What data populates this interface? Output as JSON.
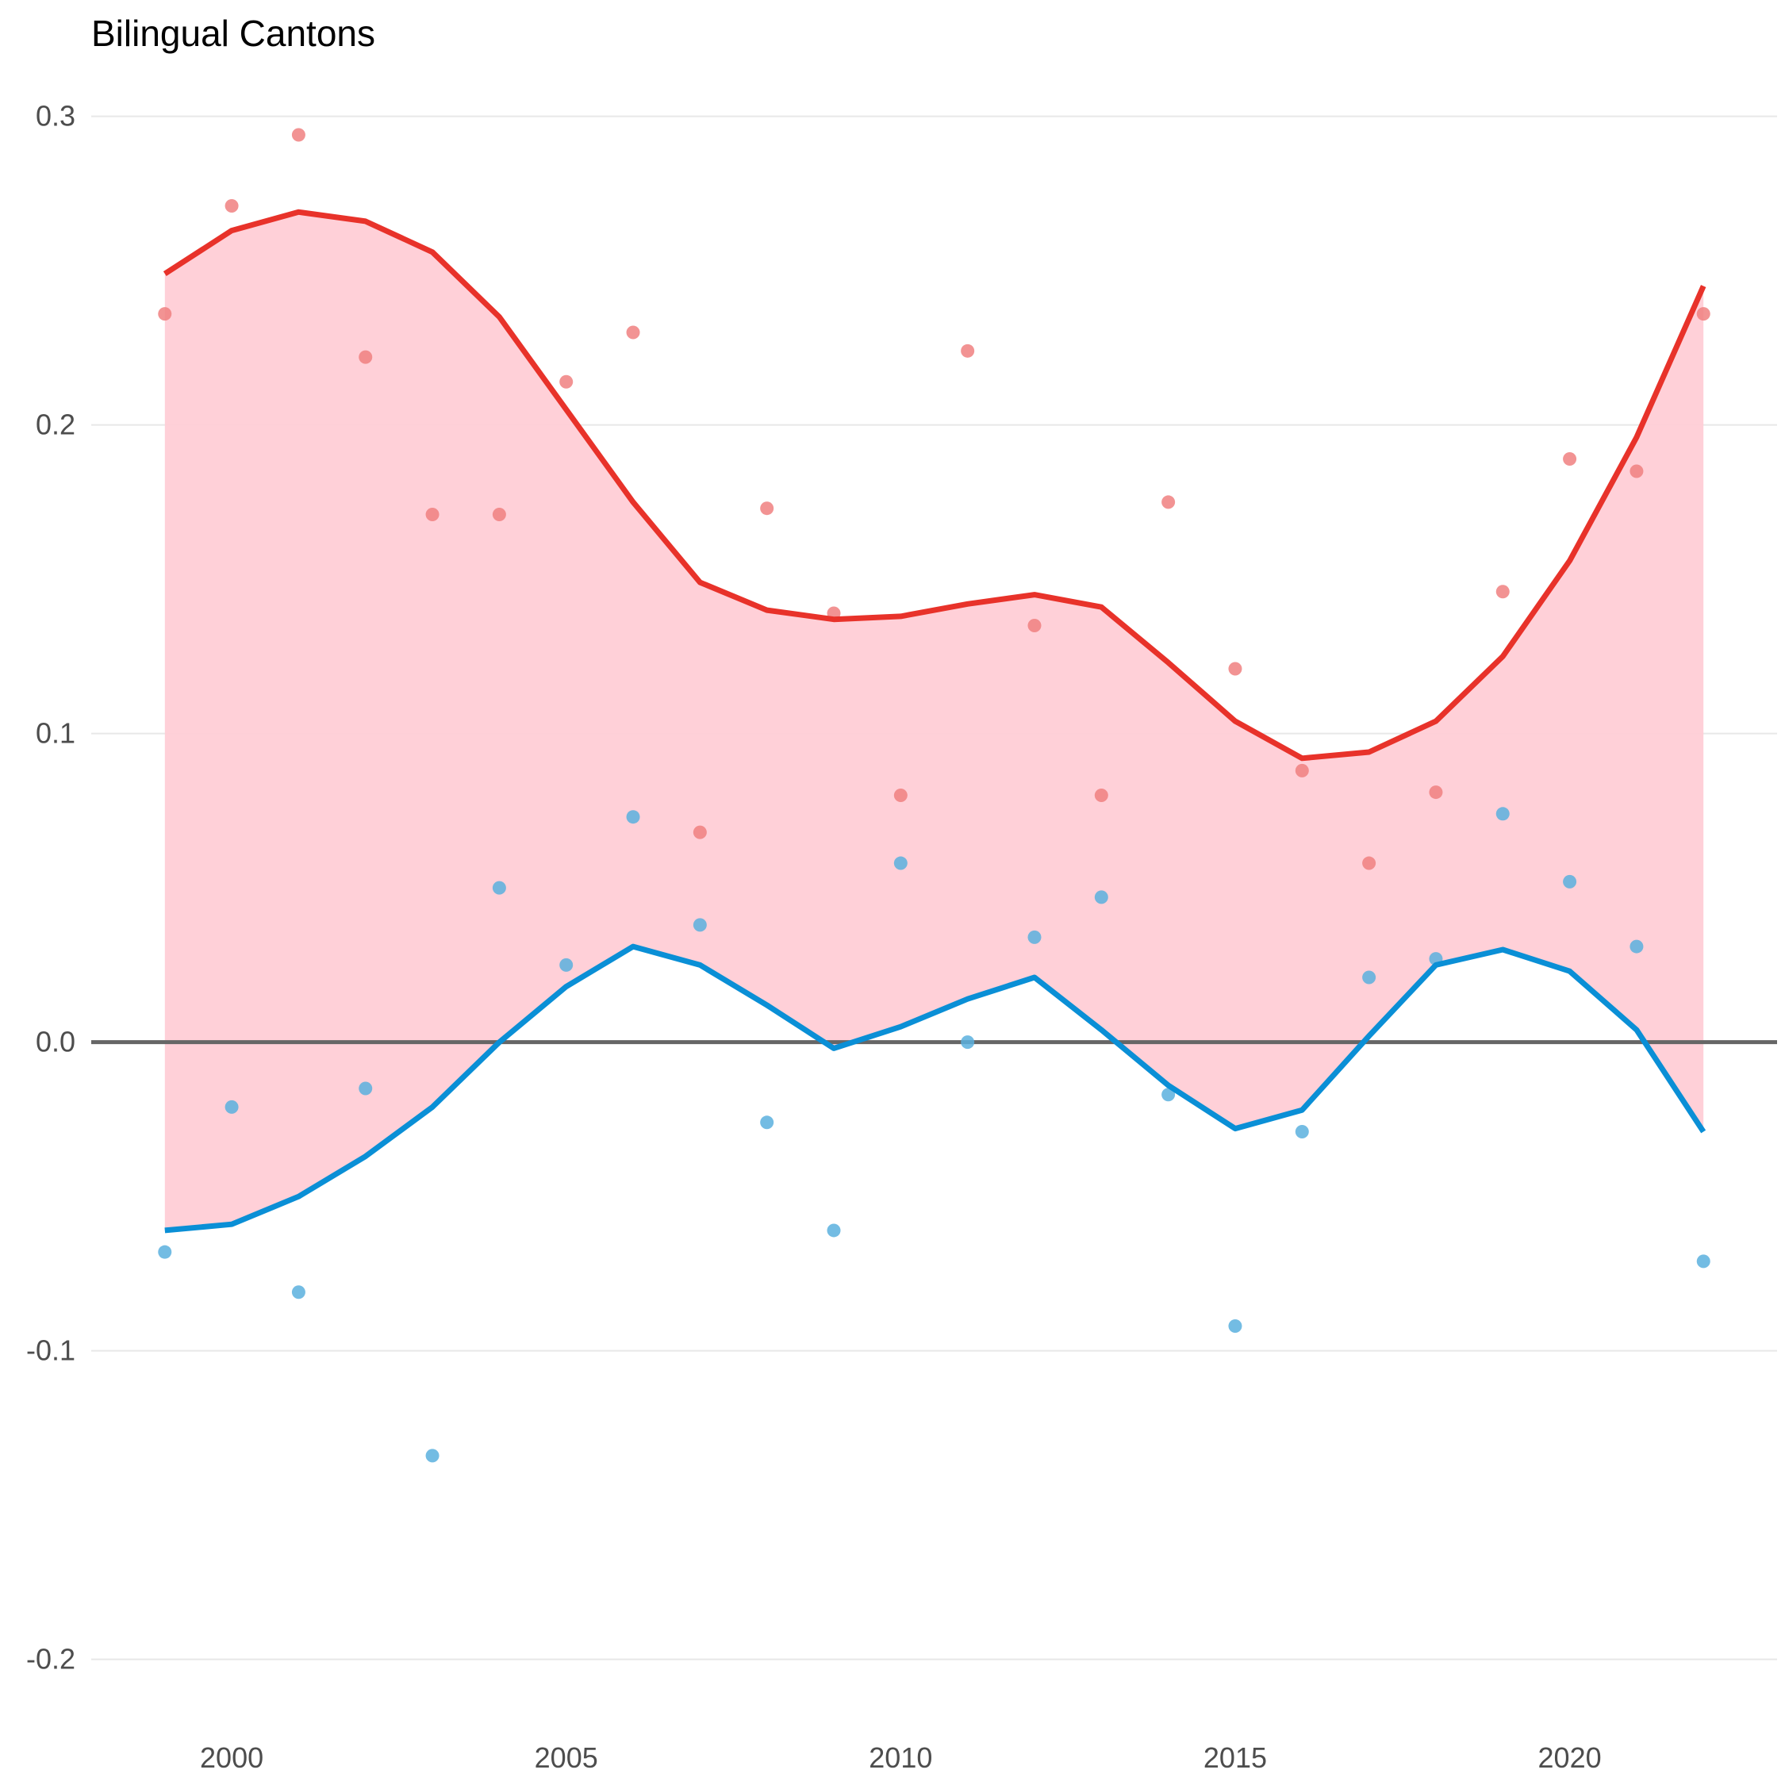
{
  "chart_data": {
    "type": "line",
    "title": "Bilingual Cantons",
    "xlabel": "",
    "ylabel": "",
    "xlim": [
      1997.9,
      2023.1
    ],
    "ylim": [
      -0.215,
      0.312
    ],
    "xticks": [
      2000,
      2005,
      2010,
      2015,
      2020
    ],
    "yticks": [
      -0.2,
      -0.1,
      0.0,
      0.1,
      0.2,
      0.3
    ],
    "ytick_labels": [
      "-0.2",
      "-0.1",
      "0.0",
      "0.1",
      "0.2",
      "0.3"
    ],
    "grid": true,
    "legend": "none",
    "colors": {
      "upper": "#e8322a",
      "lower": "#0a8fd6",
      "upper_points": "#f08080",
      "lower_points": "#5ab0de",
      "ribbon": "#ffcdd6",
      "zero_line": "#666666",
      "grid": "#e8e8e8"
    },
    "x": [
      1999,
      2000,
      2001,
      2002,
      2003,
      2004,
      2005,
      2006,
      2007,
      2008,
      2009,
      2010,
      2011,
      2012,
      2013,
      2014,
      2015,
      2016,
      2017,
      2018,
      2019,
      2020,
      2021,
      2022
    ],
    "series": [
      {
        "kind": "line",
        "role": "upper",
        "values": [
          0.249,
          0.263,
          0.269,
          0.266,
          0.256,
          0.235,
          0.205,
          0.175,
          0.149,
          0.14,
          0.137,
          0.138,
          0.142,
          0.145,
          0.141,
          0.123,
          0.104,
          0.092,
          0.094,
          0.104,
          0.125,
          0.156,
          0.196,
          0.245
        ]
      },
      {
        "kind": "line",
        "role": "lower",
        "values": [
          -0.061,
          -0.059,
          -0.05,
          -0.037,
          -0.021,
          0.0,
          0.018,
          0.031,
          0.025,
          0.012,
          -0.002,
          0.005,
          0.014,
          0.021,
          0.004,
          -0.014,
          -0.028,
          -0.022,
          0.002,
          0.025,
          0.03,
          0.023,
          0.004,
          -0.029
        ]
      },
      {
        "kind": "points",
        "role": "upper_points",
        "values": [
          0.236,
          0.271,
          0.294,
          0.222,
          0.171,
          0.171,
          0.214,
          0.23,
          0.068,
          0.173,
          0.139,
          0.08,
          0.224,
          0.135,
          0.08,
          0.175,
          0.121,
          0.088,
          0.058,
          0.081,
          0.146,
          0.189,
          0.185,
          0.236
        ]
      },
      {
        "kind": "points",
        "role": "lower_points",
        "values": [
          -0.068,
          -0.021,
          -0.081,
          -0.015,
          -0.134,
          0.05,
          0.025,
          0.073,
          0.038,
          -0.026,
          -0.061,
          0.058,
          0.0,
          0.034,
          0.047,
          -0.017,
          -0.092,
          -0.029,
          0.021,
          0.027,
          0.074,
          0.052,
          0.031,
          -0.071
        ]
      }
    ]
  }
}
